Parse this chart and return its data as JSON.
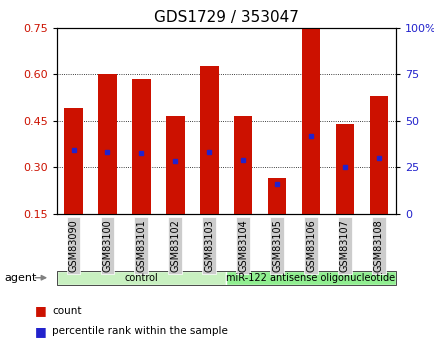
{
  "title": "GDS1729 / 353047",
  "samples": [
    "GSM83090",
    "GSM83100",
    "GSM83101",
    "GSM83102",
    "GSM83103",
    "GSM83104",
    "GSM83105",
    "GSM83106",
    "GSM83107",
    "GSM83108"
  ],
  "bar_heights": [
    0.49,
    0.6,
    0.585,
    0.465,
    0.625,
    0.465,
    0.265,
    0.755,
    0.44,
    0.53
  ],
  "bar_bottom": 0.15,
  "blue_marker_y": [
    0.355,
    0.35,
    0.345,
    0.32,
    0.35,
    0.325,
    0.245,
    0.4,
    0.3,
    0.33
  ],
  "bar_color": "#cc1100",
  "blue_color": "#2222cc",
  "ylim_left": [
    0.15,
    0.75
  ],
  "ylim_right": [
    0,
    100
  ],
  "yticks_left": [
    0.15,
    0.3,
    0.45,
    0.6,
    0.75
  ],
  "yticks_right": [
    0,
    25,
    50,
    75,
    100
  ],
  "ytick_labels_left": [
    "0.15",
    "0.30",
    "0.45",
    "0.60",
    "0.75"
  ],
  "ytick_labels_right": [
    "0",
    "25",
    "50",
    "75",
    "100%"
  ],
  "groups": [
    {
      "label": "control",
      "start": 0,
      "end": 5,
      "color": "#c8f0c0"
    },
    {
      "label": "miR-122 antisense oligonucleotide",
      "start": 5,
      "end": 10,
      "color": "#90ee90"
    }
  ],
  "agent_label": "agent",
  "legend_count_label": "count",
  "legend_pct_label": "percentile rank within the sample",
  "bg_color": "#ffffff",
  "tick_bg_color": "#cccccc",
  "bar_width": 0.55,
  "grid_color": "#000000",
  "title_fontsize": 11,
  "tick_label_fontsize": 7,
  "axis_fontsize": 8
}
